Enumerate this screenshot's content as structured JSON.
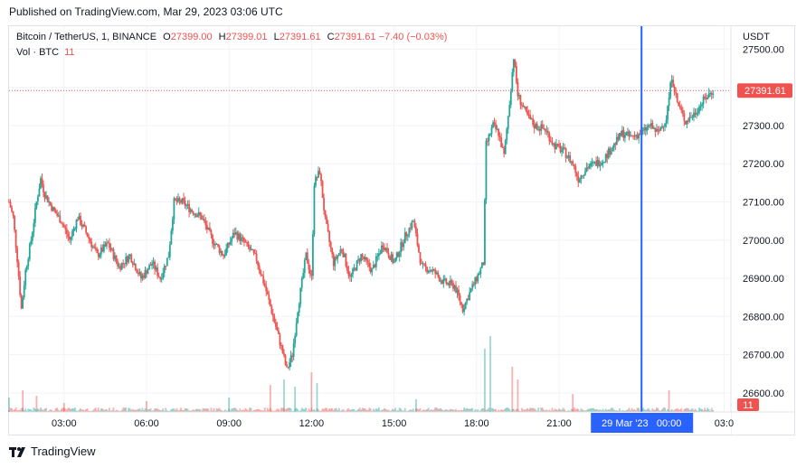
{
  "header": {
    "published": "Published on TradingView.com, Mar 29, 2023 03:06 UTC"
  },
  "legend": {
    "symbol": "Bitcoin / TetherUS, 1, BINANCE",
    "open_label": "O",
    "open": "27399.00",
    "high_label": "H",
    "high": "27399.01",
    "low_label": "L",
    "low": "27391.61",
    "close_label": "C",
    "close": "27391.61",
    "change": "−7.40 (−0.03%)",
    "vol_label": "Vol · BTC",
    "vol_value": "11"
  },
  "footer": {
    "brand": "TradingView"
  },
  "colors": {
    "up": "#26a69a",
    "down": "#ef5350",
    "crosshair": "#2962ff",
    "grid": "#f0f3fa"
  },
  "chart_data": {
    "type": "candlestick",
    "timeframe": "1 minute",
    "y_axis": {
      "unit": "USDT",
      "range": [
        26550,
        27560
      ],
      "ticks": [
        "27500.00",
        "27400.00",
        "27300.00",
        "27200.00",
        "27100.00",
        "27000.00",
        "26900.00",
        "26800.00",
        "26700.00",
        "26600.00"
      ]
    },
    "x_axis": {
      "range_hours": [
        1.0,
        27.25
      ],
      "ticks": [
        {
          "label": "03:00",
          "h": 3
        },
        {
          "label": "06:00",
          "h": 6
        },
        {
          "label": "09:00",
          "h": 9
        },
        {
          "label": "12:00",
          "h": 12
        },
        {
          "label": "15:00",
          "h": 15
        },
        {
          "label": "18:00",
          "h": 18
        },
        {
          "label": "21:00",
          "h": 21
        },
        {
          "label": "03:0",
          "h": 27
        }
      ]
    },
    "last_price": "27391.61",
    "last_price_value": 27391.61,
    "volume_last": "11",
    "crosshair": {
      "label": "29 Mar '23   00:00",
      "h": 24
    },
    "price_path": [
      [
        1.0,
        27100
      ],
      [
        1.15,
        27060
      ],
      [
        1.3,
        26950
      ],
      [
        1.45,
        26820
      ],
      [
        1.6,
        26920
      ],
      [
        1.8,
        27000
      ],
      [
        2.0,
        27100
      ],
      [
        2.15,
        27160
      ],
      [
        2.3,
        27120
      ],
      [
        2.6,
        27080
      ],
      [
        2.9,
        27050
      ],
      [
        3.2,
        27000
      ],
      [
        3.5,
        27060
      ],
      [
        3.8,
        27020
      ],
      [
        4.2,
        26960
      ],
      [
        4.6,
        26990
      ],
      [
        5.0,
        26930
      ],
      [
        5.4,
        26960
      ],
      [
        5.8,
        26900
      ],
      [
        6.2,
        26940
      ],
      [
        6.5,
        26900
      ],
      [
        6.8,
        26960
      ],
      [
        7.0,
        27100
      ],
      [
        7.3,
        27100
      ],
      [
        7.6,
        27080
      ],
      [
        8.0,
        27060
      ],
      [
        8.4,
        27000
      ],
      [
        8.8,
        26960
      ],
      [
        9.2,
        27020
      ],
      [
        9.6,
        26990
      ],
      [
        10.0,
        26950
      ],
      [
        10.3,
        26880
      ],
      [
        10.6,
        26800
      ],
      [
        10.9,
        26720
      ],
      [
        11.1,
        26660
      ],
      [
        11.3,
        26700
      ],
      [
        11.5,
        26820
      ],
      [
        11.8,
        26960
      ],
      [
        12.0,
        26900
      ],
      [
        12.1,
        27150
      ],
      [
        12.3,
        27180
      ],
      [
        12.5,
        27050
      ],
      [
        12.8,
        26940
      ],
      [
        13.1,
        26980
      ],
      [
        13.4,
        26900
      ],
      [
        13.8,
        26960
      ],
      [
        14.2,
        26920
      ],
      [
        14.6,
        26990
      ],
      [
        15.0,
        26940
      ],
      [
        15.4,
        27010
      ],
      [
        15.7,
        27050
      ],
      [
        16.0,
        26930
      ],
      [
        16.4,
        26920
      ],
      [
        16.8,
        26890
      ],
      [
        17.2,
        26880
      ],
      [
        17.5,
        26820
      ],
      [
        17.8,
        26870
      ],
      [
        18.0,
        26900
      ],
      [
        18.25,
        26940
      ],
      [
        18.35,
        27250
      ],
      [
        18.6,
        27300
      ],
      [
        18.8,
        27280
      ],
      [
        19.0,
        27220
      ],
      [
        19.2,
        27360
      ],
      [
        19.35,
        27480
      ],
      [
        19.5,
        27380
      ],
      [
        19.8,
        27330
      ],
      [
        20.1,
        27300
      ],
      [
        20.5,
        27290
      ],
      [
        20.8,
        27250
      ],
      [
        21.2,
        27230
      ],
      [
        21.5,
        27200
      ],
      [
        21.7,
        27160
      ],
      [
        22.0,
        27190
      ],
      [
        22.3,
        27200
      ],
      [
        22.6,
        27210
      ],
      [
        22.9,
        27240
      ],
      [
        23.3,
        27280
      ],
      [
        23.6,
        27270
      ],
      [
        24.0,
        27280
      ],
      [
        24.3,
        27300
      ],
      [
        24.6,
        27280
      ],
      [
        24.9,
        27320
      ],
      [
        25.1,
        27430
      ],
      [
        25.3,
        27360
      ],
      [
        25.6,
        27310
      ],
      [
        25.9,
        27330
      ],
      [
        26.3,
        27370
      ],
      [
        26.6,
        27392
      ]
    ],
    "volume_spikes": [
      {
        "h": 1.0,
        "v": 8
      },
      {
        "h": 1.5,
        "v": 12
      },
      {
        "h": 2.0,
        "v": 9
      },
      {
        "h": 3.0,
        "v": 5
      },
      {
        "h": 6.0,
        "v": 6
      },
      {
        "h": 9.0,
        "v": 8
      },
      {
        "h": 10.5,
        "v": 15
      },
      {
        "h": 11.0,
        "v": 18
      },
      {
        "h": 11.4,
        "v": 14
      },
      {
        "h": 12.0,
        "v": 22
      },
      {
        "h": 12.2,
        "v": 16
      },
      {
        "h": 15.8,
        "v": 7
      },
      {
        "h": 18.3,
        "v": 35
      },
      {
        "h": 18.5,
        "v": 42
      },
      {
        "h": 19.3,
        "v": 25
      },
      {
        "h": 19.5,
        "v": 18
      },
      {
        "h": 21.5,
        "v": 10
      },
      {
        "h": 24.0,
        "v": 6
      },
      {
        "h": 25.0,
        "v": 12
      }
    ]
  }
}
